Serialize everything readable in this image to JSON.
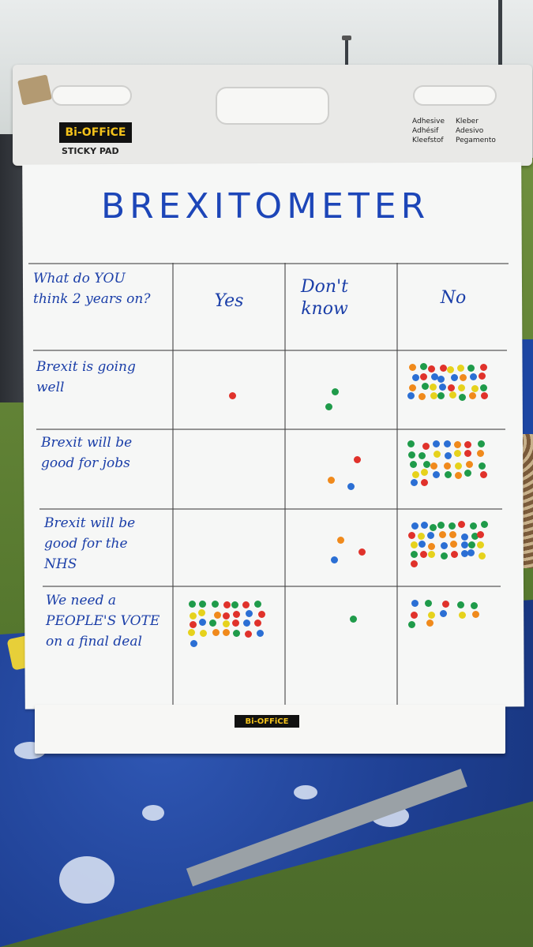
{
  "board": {
    "brand": "Bi-OFFiCE",
    "brand_sub": "STICKY PAD",
    "adhesive_labels": [
      "Adhesive",
      "Kleber",
      "Adhésif",
      "Adesivo",
      "Kleefstof",
      "Pegamento"
    ],
    "base_brand": "Bi-OFFiCE"
  },
  "chart": {
    "title": "BREXITOMETER",
    "question_header": "What do YOU think 2 years on?",
    "columns": [
      "Yes",
      "Don't know",
      "No"
    ],
    "rows": [
      {
        "label": "Brexit is going well",
        "counts": {
          "yes": 1,
          "dont_know": 2,
          "no": 32
        }
      },
      {
        "label": "Brexit will be good for jobs",
        "counts": {
          "yes": 0,
          "dont_know": 3,
          "no": 30
        }
      },
      {
        "label": "Brexit will be good for the NHS",
        "counts": {
          "yes": 0,
          "dont_know": 3,
          "no": 33
        }
      },
      {
        "label": "We need a PEOPLE'S VOTE on a final deal",
        "counts": {
          "yes": 29,
          "dont_know": 1,
          "no": 12
        }
      }
    ]
  },
  "dot_colors": [
    "#e0322b",
    "#2b6fd4",
    "#1f9b4a",
    "#f08a1c",
    "#e6d21c"
  ]
}
